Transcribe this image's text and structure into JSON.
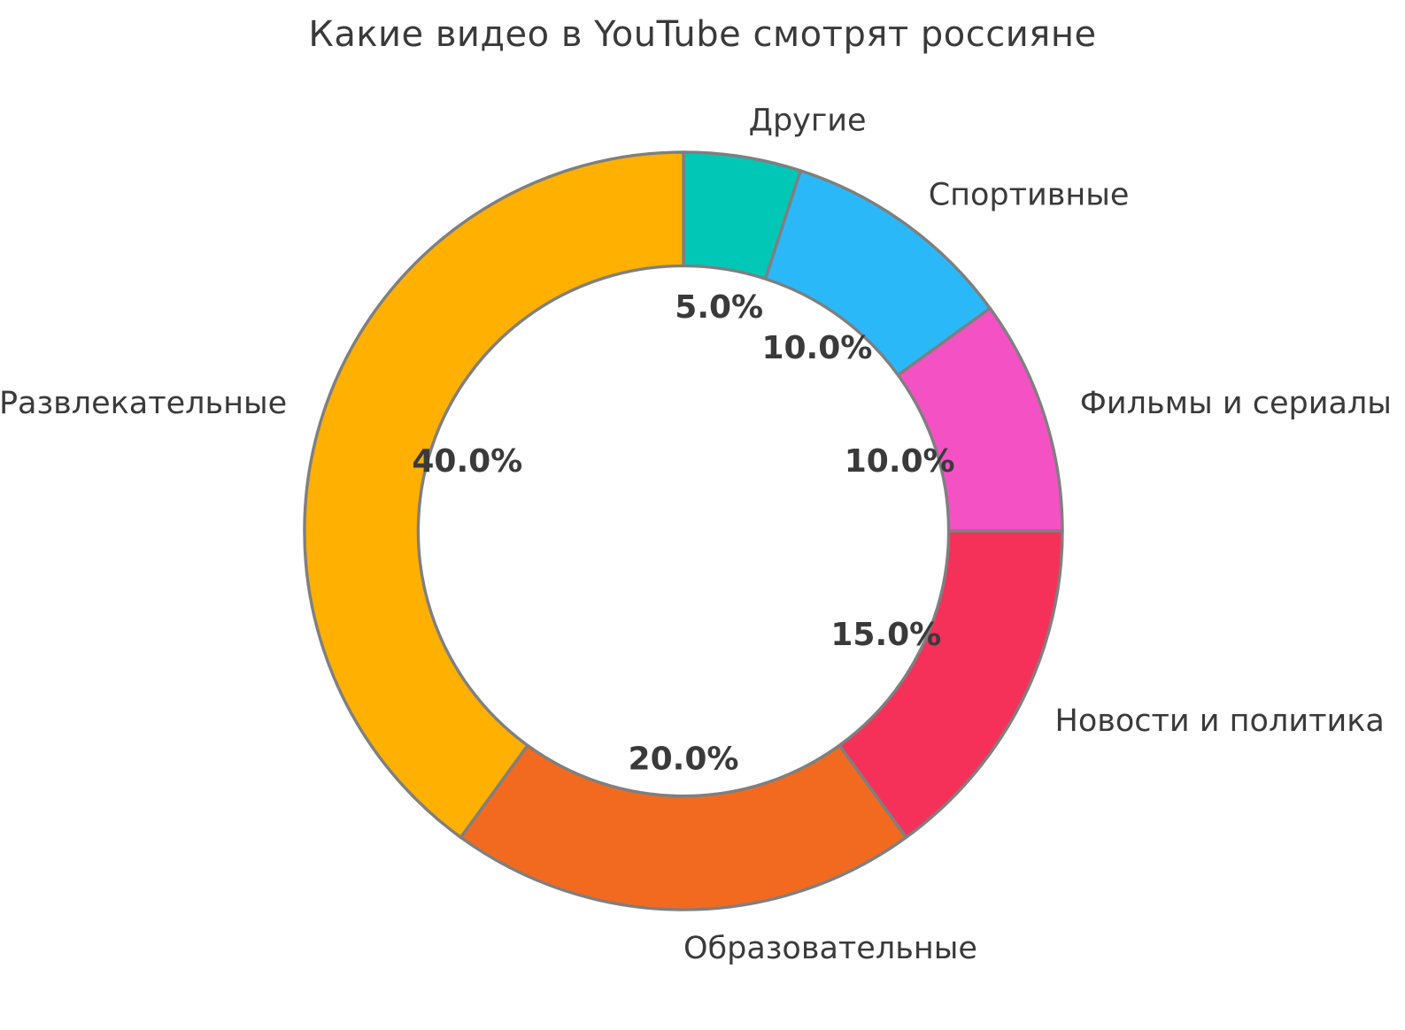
{
  "chart_data": {
    "type": "pie",
    "subtype": "donut",
    "title": "Какие видео в YouTube смотрят россияне",
    "categories": [
      "Другие",
      "Спортивные",
      "Фильмы и сериалы",
      "Новости и политика",
      "Образовательные",
      "Развлекательные"
    ],
    "values": [
      5,
      10,
      10,
      15,
      20,
      40
    ],
    "percent_labels": [
      "5.0%",
      "10.0%",
      "10.0%",
      "15.0%",
      "20.0%",
      "40.0%"
    ],
    "colors": [
      "#00C7B6",
      "#2BB8F8",
      "#F451C5",
      "#F5315A",
      "#F26A1F",
      "#FFB001"
    ],
    "edge_color": "#7F7F7F",
    "edge_width": 3.4,
    "label_color": "#3A3A3A",
    "pct_color": "#3A3A3A",
    "start_angle": "top",
    "direction": "clockwise",
    "donut_hole_ratio": 0.7,
    "label_distance": 1.1,
    "pct_distance": 0.6,
    "legend": "none",
    "background": "#FFFFFF",
    "total": 100
  }
}
